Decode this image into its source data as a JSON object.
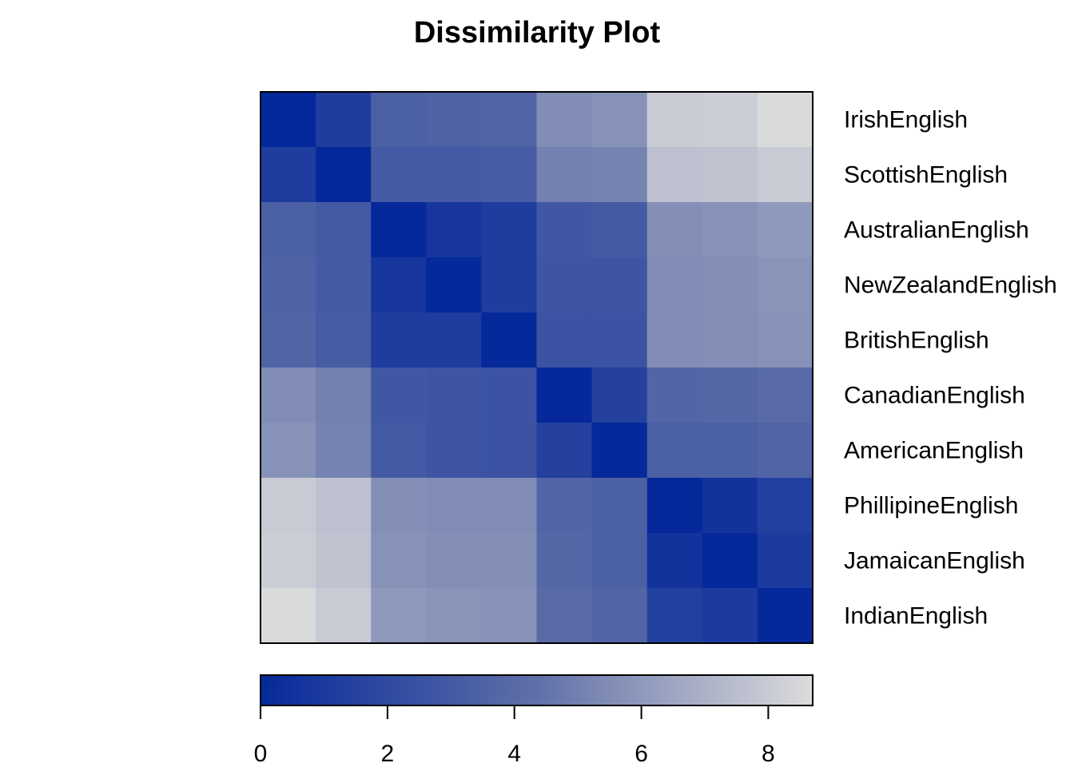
{
  "chart_data": {
    "type": "heatmap",
    "title": "Dissimilarity Plot",
    "labels": [
      "IrishEnglish",
      "ScottishEnglish",
      "AustralianEnglish",
      "NewZealandEnglish",
      "BritishEnglish",
      "CanadianEnglish",
      "AmericanEnglish",
      "PhillipineEnglish",
      "JamaicanEnglish",
      "IndianEnglish"
    ],
    "matrix": [
      [
        0.0,
        1.2,
        3.4,
        3.5,
        3.6,
        5.5,
        5.7,
        8.0,
        8.1,
        8.6
      ],
      [
        1.2,
        0.0,
        3.0,
        3.0,
        3.1,
        5.0,
        5.1,
        7.6,
        7.7,
        8.0
      ],
      [
        3.4,
        3.0,
        0.0,
        0.8,
        1.2,
        2.8,
        3.0,
        5.6,
        5.7,
        6.0
      ],
      [
        3.5,
        3.0,
        0.8,
        0.0,
        1.2,
        2.7,
        2.7,
        5.5,
        5.6,
        5.8
      ],
      [
        3.6,
        3.1,
        1.2,
        1.2,
        0.0,
        2.6,
        2.6,
        5.5,
        5.6,
        5.7
      ],
      [
        5.5,
        5.0,
        2.8,
        2.7,
        2.6,
        0.0,
        1.5,
        3.7,
        3.8,
        4.0
      ],
      [
        5.7,
        5.1,
        3.0,
        2.7,
        2.6,
        1.5,
        0.0,
        3.4,
        3.4,
        3.6
      ],
      [
        8.0,
        7.6,
        5.6,
        5.5,
        5.5,
        3.7,
        3.4,
        0.0,
        0.6,
        1.4
      ],
      [
        8.1,
        7.7,
        5.7,
        5.6,
        5.6,
        3.8,
        3.4,
        0.6,
        0.0,
        1.1
      ],
      [
        8.6,
        8.0,
        6.0,
        5.8,
        5.7,
        4.0,
        3.6,
        1.4,
        1.1,
        0.0
      ]
    ],
    "colorbar": {
      "range": [
        0,
        8.7
      ],
      "ticks": [
        0,
        2,
        4,
        6,
        8
      ],
      "tick_labels": [
        "0",
        "2",
        "4",
        "6",
        "8"
      ]
    },
    "colors": {
      "low": "#05299A",
      "mid": "#6070A8",
      "high": "#DCDCDC"
    },
    "row_label_position": "right",
    "grid": false
  }
}
